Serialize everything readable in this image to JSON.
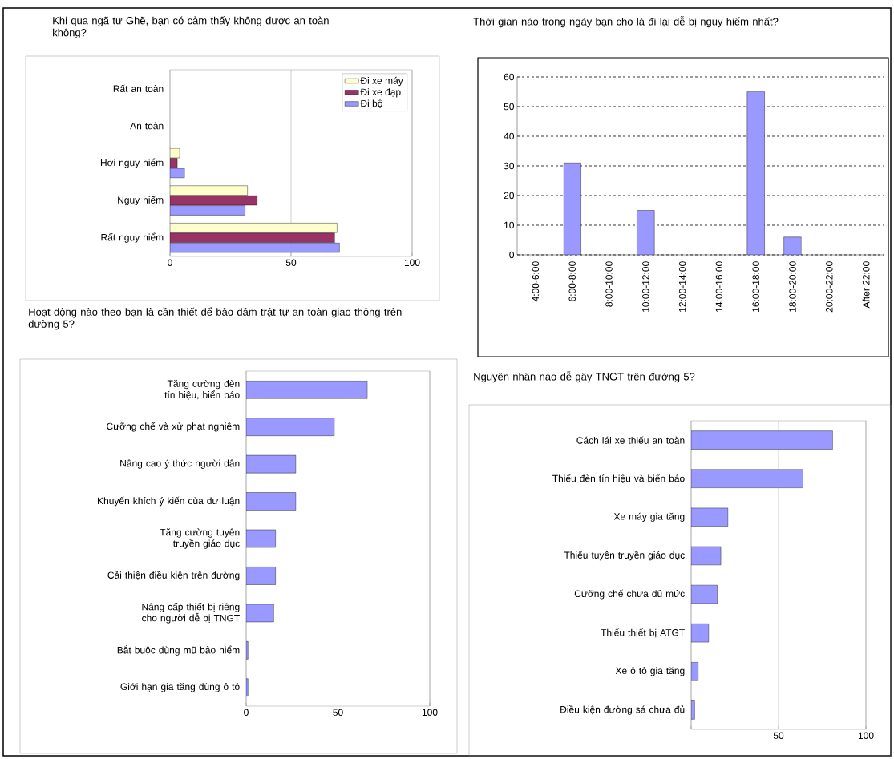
{
  "chart_data": [
    {
      "type": "bar",
      "orientation": "horizontal",
      "title": "Khi qua ngã tư Ghẽ, bạn có cảm thấy không được an toàn không?",
      "categories": [
        "Rất an toàn",
        "An toàn",
        "Hơi nguy hiểm",
        "Nguy hiểm",
        "Rất nguy hiểm"
      ],
      "series": [
        {
          "name": "Đi xe máy",
          "color": "#ffffcc",
          "values": [
            0,
            0,
            4,
            32,
            69
          ]
        },
        {
          "name": "Đi xe đạp",
          "color": "#993366",
          "values": [
            0,
            0,
            3,
            36,
            68
          ]
        },
        {
          "name": "Đi bộ",
          "color": "#9999ff",
          "values": [
            0,
            0,
            6,
            31,
            70
          ]
        }
      ],
      "xlim": [
        0,
        100
      ],
      "xticks": [
        0,
        50,
        100
      ],
      "grid": "x",
      "legend": "top right"
    },
    {
      "type": "bar",
      "title": "Thời gian nào trong ngày bạn cho là đi lại dễ bị nguy hiểm nhất?",
      "categories": [
        "4:00-6:00",
        "6:00-8:00",
        "8:00-10:00",
        "10:00-12:00",
        "12:00-14:00",
        "14:00-16:00",
        "16:00-18:00",
        "18:00-20:00",
        "20:00-22:00",
        "After 22:00"
      ],
      "values": [
        0,
        31,
        0,
        15,
        0,
        0,
        55,
        6,
        0,
        0
      ],
      "color": "#9999ff",
      "ylim": [
        0,
        60
      ],
      "yticks": [
        0,
        10,
        20,
        30,
        40,
        50,
        60
      ],
      "grid": "y"
    },
    {
      "type": "bar",
      "orientation": "horizontal",
      "title": "Hoạt động nào theo bạn là cần thiết để bảo đảm trật tự an toàn giao thông trên đường 5?",
      "categories": [
        "Tăng cường đèn tín hiệu, biển báo",
        "Cưỡng chế và xử phạt nghiêm",
        "Nâng cao ý thức người dân",
        "Khuyến khích ý kiến của dư luận",
        "Tăng cường tuyên truyền giáo dục",
        "Cải thiện điều kiện trên đường",
        "Nâng cấp thiết bị riêng cho người dễ bị TNGT",
        "Bắt buộc dùng mũ bảo hiểm",
        "Giới hạn gia tăng dùng ô tô"
      ],
      "values": [
        66,
        48,
        27,
        27,
        16,
        16,
        15,
        1,
        1
      ],
      "color": "#9999ff",
      "xlim": [
        0,
        100
      ],
      "xticks": [
        0,
        50,
        100
      ],
      "grid": "x"
    },
    {
      "type": "bar",
      "orientation": "horizontal",
      "title": "Nguyên nhân nào dễ gây TNGT trên đường 5?",
      "categories": [
        "Cách lái xe thiếu an toàn",
        "Thiếu đèn tín hiệu và biển báo",
        "Xe máy gia tăng",
        "Thiếu tuyên truyền giáo dục",
        "Cưỡng chế chưa đủ mức",
        "Thiếu thiết bị ATGT",
        "Xe ô tô gia tăng",
        "Điều kiện đường sá chưa đủ"
      ],
      "values": [
        81,
        64,
        21,
        17,
        15,
        10,
        4,
        2
      ],
      "color": "#9999ff",
      "xlim": [
        0,
        100
      ],
      "xticks": [
        {
          "value": 0,
          "label": null
        },
        50,
        100
      ],
      "grid": "x"
    }
  ]
}
